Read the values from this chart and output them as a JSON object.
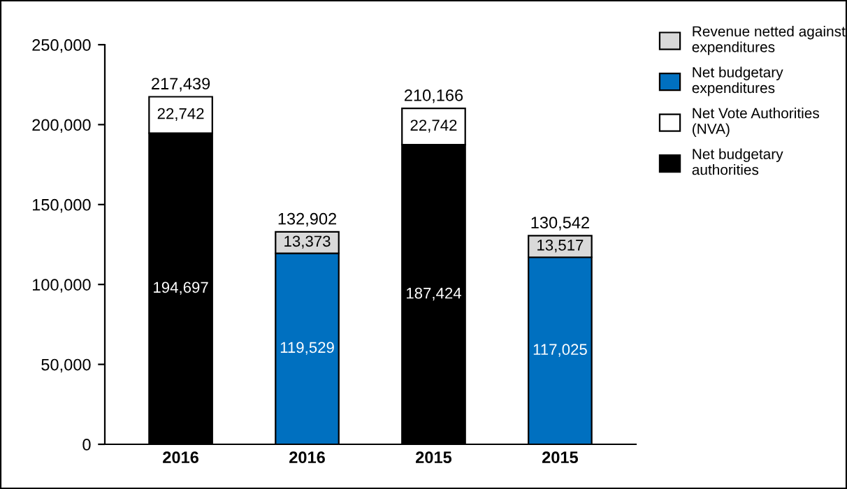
{
  "chart_data": {
    "type": "bar",
    "stacked": true,
    "categories": [
      "2016",
      "2016",
      "2015",
      "2015"
    ],
    "series": [
      {
        "name": "Net budgetary authorities",
        "color": "#000000",
        "values": [
          194697,
          null,
          187424,
          null
        ],
        "value_labels": [
          "194,697",
          null,
          "187,424",
          null
        ]
      },
      {
        "name": "Net Vote Authorities (NVA)",
        "color": "#ffffff",
        "values": [
          22742,
          null,
          22742,
          null
        ],
        "value_labels": [
          "22,742",
          null,
          "22,742",
          null
        ]
      },
      {
        "name": "Net budgetary expenditures",
        "color": "#0070c0",
        "values": [
          null,
          119529,
          null,
          117025
        ],
        "value_labels": [
          null,
          "119,529",
          null,
          "117,025"
        ]
      },
      {
        "name": "Revenue netted against expenditures",
        "color": "#d9d9d9",
        "values": [
          null,
          13373,
          null,
          13517
        ],
        "value_labels": [
          null,
          "13,373",
          null,
          "13,517"
        ]
      }
    ],
    "totals": [
      "217,439",
      "132,902",
      "210,166",
      "130,542"
    ],
    "ylim": [
      0,
      250000
    ],
    "yticks": [
      {
        "value": 0,
        "label": "0"
      },
      {
        "value": 50000,
        "label": "50,000"
      },
      {
        "value": 100000,
        "label": "100,000"
      },
      {
        "value": 150000,
        "label": "150,000"
      },
      {
        "value": 200000,
        "label": "200,000"
      },
      {
        "value": 250000,
        "label": "250,000"
      }
    ],
    "grid": false,
    "legend": "right"
  }
}
